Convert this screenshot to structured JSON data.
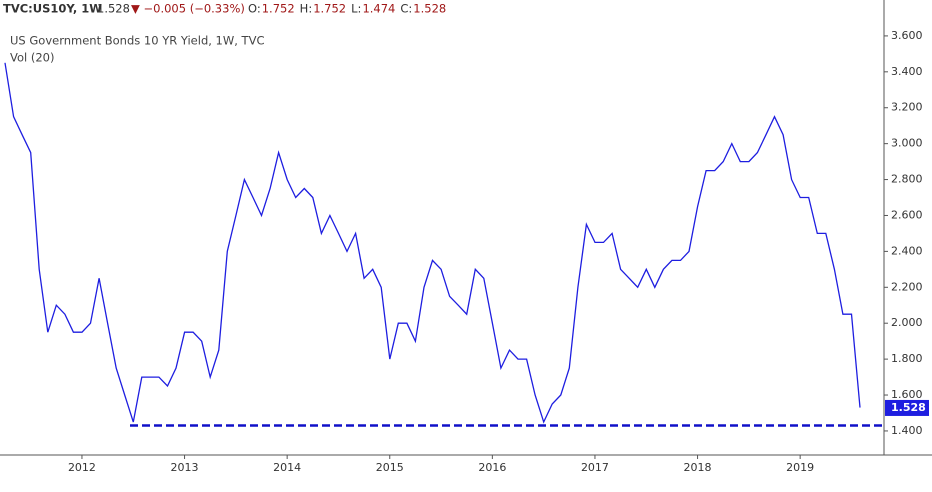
{
  "header": {
    "symbol": "TVC:US10Y, 1W",
    "last": "1.528",
    "change": "▼ −0.005 (−0.33%)",
    "ohlc": [
      {
        "key": "O:",
        "value": "1.752"
      },
      {
        "key": "H:",
        "value": "1.752"
      },
      {
        "key": "L:",
        "value": "1.474"
      },
      {
        "key": "C:",
        "value": "1.528"
      }
    ]
  },
  "chart_data": {
    "type": "line",
    "title": "US Government Bonds 10 YR Yield, 1W, TVC",
    "subtitle": "Vol (20)",
    "categories": [
      null,
      null,
      null,
      null,
      null,
      null,
      null,
      null,
      null,
      "2012",
      null,
      null,
      null,
      null,
      null,
      null,
      null,
      null,
      null,
      null,
      null,
      "2013",
      null,
      null,
      null,
      null,
      null,
      null,
      null,
      null,
      null,
      null,
      null,
      "2014",
      null,
      null,
      null,
      null,
      null,
      null,
      null,
      null,
      null,
      null,
      null,
      "2015",
      null,
      null,
      null,
      null,
      null,
      null,
      null,
      null,
      null,
      null,
      null,
      "2016",
      null,
      null,
      null,
      null,
      null,
      null,
      null,
      null,
      null,
      null,
      null,
      "2017",
      null,
      null,
      null,
      null,
      null,
      null,
      null,
      null,
      null,
      null,
      null,
      "2018",
      null,
      null,
      null,
      null,
      null,
      null,
      null,
      null,
      null,
      null,
      null,
      "2019",
      null,
      null,
      null,
      null,
      null,
      null,
      null
    ],
    "series": [
      {
        "name": "US10Y",
        "color": "#1e1ee0",
        "values": [
          3.45,
          3.15,
          3.05,
          2.95,
          2.3,
          1.95,
          2.1,
          2.05,
          1.95,
          1.95,
          2.0,
          2.25,
          2.0,
          1.75,
          1.6,
          1.45,
          1.7,
          1.7,
          1.7,
          1.65,
          1.75,
          1.95,
          1.95,
          1.9,
          1.7,
          1.85,
          2.4,
          2.6,
          2.8,
          2.7,
          2.6,
          2.75,
          2.95,
          2.8,
          2.7,
          2.75,
          2.7,
          2.5,
          2.6,
          2.5,
          2.4,
          2.5,
          2.25,
          2.3,
          2.2,
          1.8,
          2.0,
          2.0,
          1.9,
          2.2,
          2.35,
          2.3,
          2.15,
          2.1,
          2.05,
          2.3,
          2.25,
          2.0,
          1.75,
          1.85,
          1.8,
          1.8,
          1.6,
          1.45,
          1.55,
          1.6,
          1.75,
          2.2,
          2.55,
          2.45,
          2.45,
          2.5,
          2.3,
          2.25,
          2.2,
          2.3,
          2.2,
          2.3,
          2.35,
          2.35,
          2.4,
          2.65,
          2.85,
          2.85,
          2.9,
          3.0,
          2.9,
          2.9,
          2.95,
          3.05,
          3.15,
          3.05,
          2.8,
          2.7,
          2.7,
          2.5,
          2.5,
          2.3,
          2.05,
          2.05,
          1.53
        ]
      }
    ],
    "ylim": [
      1.266,
      3.8
    ],
    "yticks": [
      {
        "value": 1.4,
        "label": "1.400"
      },
      {
        "value": 1.6,
        "label": "1.600"
      },
      {
        "value": 1.8,
        "label": "1.800"
      },
      {
        "value": 2.0,
        "label": "2.000"
      },
      {
        "value": 2.2,
        "label": "2.200"
      },
      {
        "value": 2.4,
        "label": "2.400"
      },
      {
        "value": 2.6,
        "label": "2.600"
      },
      {
        "value": 2.8,
        "label": "2.800"
      },
      {
        "value": 3.0,
        "label": "3.000"
      },
      {
        "value": 3.2,
        "label": "3.200"
      },
      {
        "value": 3.4,
        "label": "3.400"
      },
      {
        "value": 3.6,
        "label": "3.600"
      }
    ],
    "last_value": {
      "value": 1.528,
      "label": "1.528"
    },
    "support_level": 1.43
  }
}
